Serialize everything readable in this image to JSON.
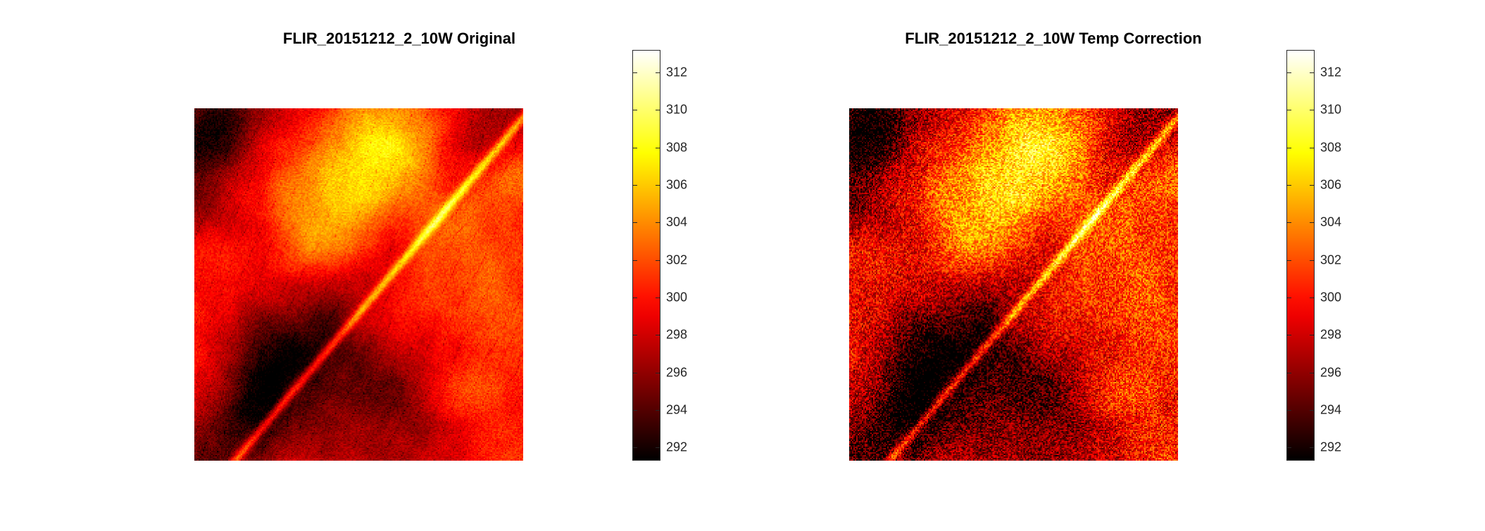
{
  "chart_data": [
    {
      "type": "heatmap",
      "title": "FLIR_20151212_2_10W Original",
      "colormap": "hot",
      "colorbar": {
        "range": [
          291.3,
          313.2
        ],
        "ticks": [
          292,
          294,
          296,
          298,
          300,
          302,
          304,
          306,
          308,
          310,
          312
        ]
      },
      "description_values": {
        "min_temp": 291.3,
        "max_temp": 313.2
      }
    },
    {
      "type": "heatmap",
      "title": "FLIR_20151212_2_10W Temp Correction",
      "colormap": "hot",
      "colorbar": {
        "range": [
          291.3,
          313.2
        ],
        "ticks": [
          292,
          294,
          296,
          298,
          300,
          302,
          304,
          306,
          308,
          310,
          312
        ]
      },
      "description_values": {
        "min_temp": 291.3,
        "max_temp": 313.2
      }
    }
  ]
}
